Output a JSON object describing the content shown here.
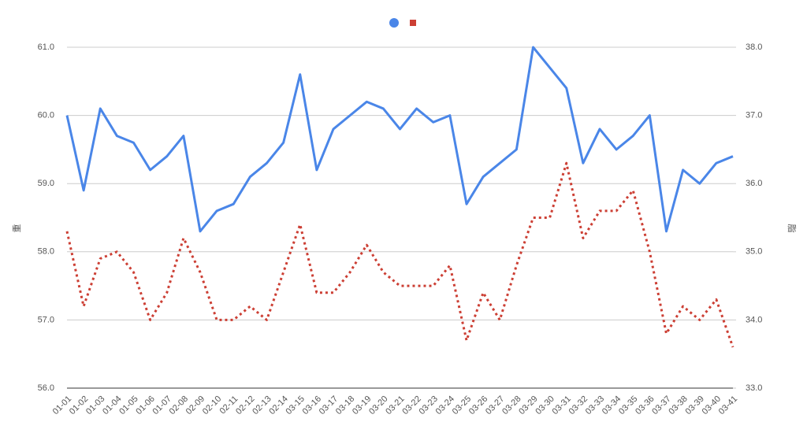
{
  "chart_data": {
    "type": "line",
    "y_label": "重",
    "y2_label": "脂",
    "categories": [
      "01-01",
      "01-02",
      "01-03",
      "01-04",
      "01-05",
      "01-06",
      "01-07",
      "02-08",
      "02-09",
      "02-10",
      "02-11",
      "02-12",
      "02-13",
      "02-14",
      "03-15",
      "03-16",
      "03-17",
      "03-18",
      "03-19",
      "03-20",
      "03-21",
      "03-22",
      "03-23",
      "03-24",
      "03-25",
      "03-26",
      "03-27",
      "03-28",
      "03-29",
      "03-30",
      "03-31",
      "03-32",
      "03-33",
      "03-34",
      "03-35",
      "03-36",
      "03-37",
      "03-38",
      "03-39",
      "03-40",
      "03-41"
    ],
    "series": [
      {
        "color": "#4a86e8",
        "style": "solid",
        "marker": "circle",
        "values": [
          60.0,
          58.9,
          60.1,
          59.7,
          59.6,
          59.2,
          59.4,
          59.7,
          58.3,
          58.6,
          58.7,
          59.1,
          59.3,
          59.6,
          60.6,
          59.2,
          59.8,
          60.0,
          60.2,
          60.1,
          59.8,
          60.1,
          59.9,
          60.0,
          58.7,
          59.1,
          59.3,
          59.5,
          61.0,
          60.7,
          60.4,
          59.3,
          59.8,
          59.5,
          59.7,
          60.0,
          58.3,
          59.2,
          59.0,
          59.3,
          59.4
        ]
      },
      {
        "color": "#cc3f34",
        "style": "dotted",
        "marker": "square",
        "axis": "y2",
        "values": [
          35.3,
          34.2,
          34.9,
          35.0,
          34.7,
          34.0,
          34.4,
          35.2,
          34.7,
          34.0,
          34.0,
          34.2,
          34.0,
          34.7,
          35.4,
          34.4,
          34.4,
          34.7,
          35.1,
          34.7,
          34.5,
          34.5,
          34.5,
          34.8,
          33.7,
          34.4,
          34.0,
          34.8,
          35.5,
          35.5,
          36.3,
          35.2,
          35.6,
          35.6,
          35.9,
          35.0,
          33.8,
          34.2,
          34.0,
          34.3,
          33.6
        ]
      }
    ],
    "ylim": [
      56,
      61
    ],
    "yticks": [
      {
        "value": 56,
        "label": "56.0"
      },
      {
        "value": 57,
        "label": "57.0"
      },
      {
        "value": 58,
        "label": "58.0"
      },
      {
        "value": 59,
        "label": "59.0"
      },
      {
        "value": 60,
        "label": "60.0"
      },
      {
        "value": 61,
        "label": "61.0"
      }
    ],
    "y2lim": [
      33,
      38
    ],
    "y2ticks": [
      {
        "value": 33,
        "label": "33.0"
      },
      {
        "value": 34,
        "label": "34.0"
      },
      {
        "value": 35,
        "label": "35.0"
      },
      {
        "value": 36,
        "label": "36.0"
      },
      {
        "value": 37,
        "label": "37.0"
      },
      {
        "value": 38,
        "label": "38.0"
      }
    ],
    "grid": true,
    "legend": "top"
  }
}
